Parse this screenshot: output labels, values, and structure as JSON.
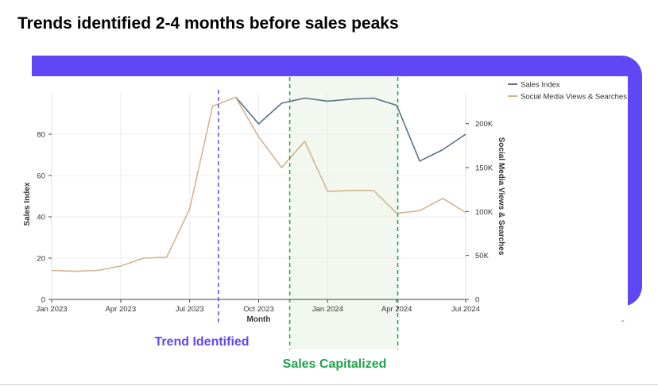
{
  "page": {
    "title": "Trends identified 2-4 months before sales peaks",
    "accent_color": "#6047f5",
    "footnote_mark": "-"
  },
  "chart_data": {
    "type": "line",
    "x_labels": [
      "Jan 2023",
      "Feb 2023",
      "Mar 2023",
      "Apr 2023",
      "May 2023",
      "Jun 2023",
      "Jul 2023",
      "Aug 2023",
      "Sep 2023",
      "Oct 2023",
      "Nov 2023",
      "Dec 2023",
      "Jan 2024",
      "Feb 2024",
      "Mar 2024",
      "Apr 2024",
      "May 2024",
      "Jun 2024",
      "Jul 2024"
    ],
    "xlabel": "Month",
    "x_ticks": [
      {
        "index": 0,
        "label": "Jan 2023"
      },
      {
        "index": 3,
        "label": "Apr 2023"
      },
      {
        "index": 6,
        "label": "Jul 2023"
      },
      {
        "index": 9,
        "label": "Oct 2023"
      },
      {
        "index": 12,
        "label": "Jan 2024"
      },
      {
        "index": 15,
        "label": "Apr 2024"
      },
      {
        "index": 18,
        "label": "Jul 2024"
      }
    ],
    "y_left": {
      "label": "Sales Index",
      "range": [
        0,
        100
      ],
      "ticks": [
        0,
        20,
        40,
        60,
        80
      ]
    },
    "y_right": {
      "label": "Social Media Views & Searches",
      "range": [
        0,
        235000
      ],
      "ticks": [
        0,
        50000,
        100000,
        150000,
        200000
      ],
      "tick_labels": [
        "0",
        "50K",
        "100K",
        "150K",
        "200K"
      ]
    },
    "series": [
      {
        "name": "Sales Index",
        "axis": "left",
        "color": "#5b7287",
        "start_index": 8,
        "values": [
          98,
          85,
          95,
          97.5,
          96,
          97,
          97.5,
          94,
          67,
          72.5,
          80
        ]
      },
      {
        "name": "Social Media Views & Searches",
        "axis": "right",
        "color": "#d3b48f",
        "start_index": 0,
        "values": [
          33000,
          32000,
          33000,
          38000,
          47000,
          48000,
          103000,
          220000,
          230000,
          185000,
          150000,
          180000,
          123000,
          124000,
          124000,
          98000,
          101000,
          115000,
          99000
        ]
      }
    ],
    "annotations": {
      "trend_line": {
        "x": 7.25,
        "label": "Trend Identified",
        "color": "#6047f5"
      },
      "sales_region": {
        "x_start": 10.35,
        "x_end": 15.05,
        "label": "Sales Capitalized",
        "color": "#1fa24a",
        "fill": "#f2f7ef"
      }
    },
    "legend_position": "top-right",
    "grid": true
  }
}
